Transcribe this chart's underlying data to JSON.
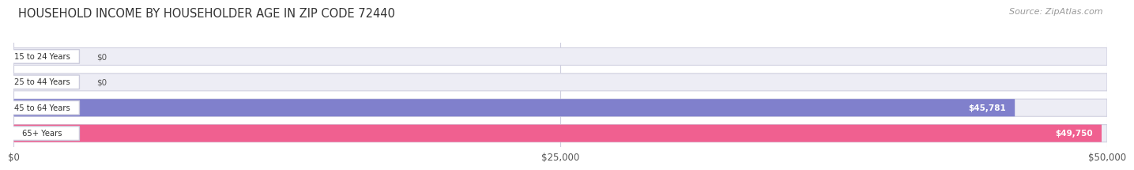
{
  "title": "HOUSEHOLD INCOME BY HOUSEHOLDER AGE IN ZIP CODE 72440",
  "source": "Source: ZipAtlas.com",
  "categories": [
    "15 to 24 Years",
    "25 to 44 Years",
    "45 to 64 Years",
    "65+ Years"
  ],
  "values": [
    0,
    0,
    45781,
    49750
  ],
  "bar_colors": [
    "#c8a0cc",
    "#72ccc4",
    "#8080cc",
    "#f06090"
  ],
  "label_colors": [
    "#555555",
    "#555555",
    "#ffffff",
    "#ffffff"
  ],
  "value_labels": [
    "$0",
    "$0",
    "$45,781",
    "$49,750"
  ],
  "xlim": [
    0,
    50000
  ],
  "xticks": [
    0,
    25000,
    50000
  ],
  "xticklabels": [
    "$0",
    "$25,000",
    "$50,000"
  ],
  "bg_color": "#ffffff",
  "bar_bg_color": "#ededf5",
  "bar_border_color": "#d0d0e0",
  "title_fontsize": 10.5,
  "source_fontsize": 8
}
